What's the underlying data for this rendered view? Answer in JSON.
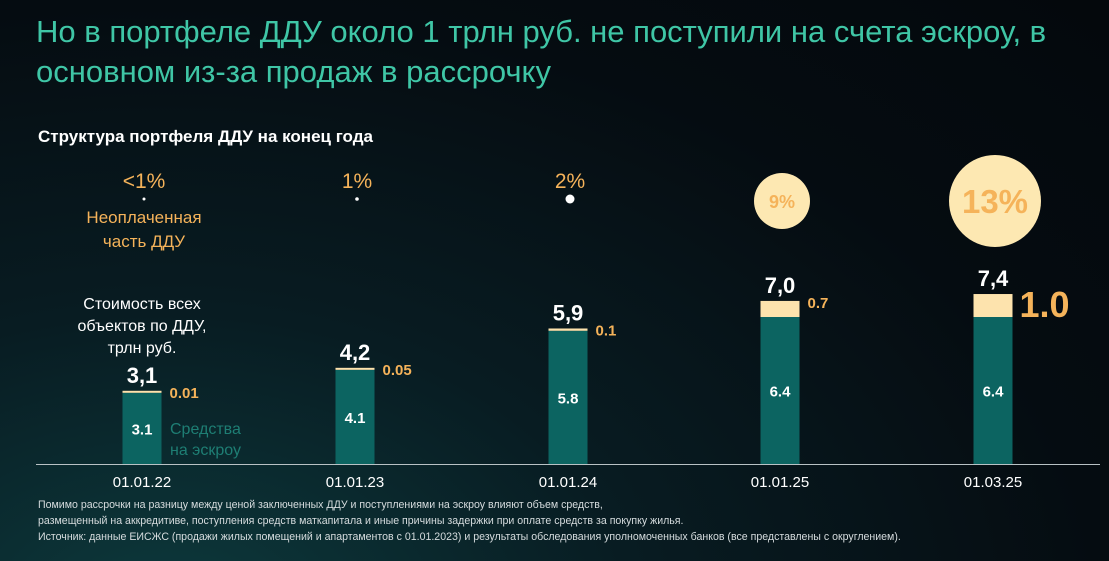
{
  "headline": "Но в портфеле ДДУ около 1 трлн руб. не поступили на счета эскроу, в основном из-за продаж в рассрочку",
  "colors": {
    "headline": "#3fc6a6",
    "escrow_bar": "#0c6461",
    "unpaid_bar": "#fde3ad",
    "unpaid_text": "#f5b35a",
    "escrow_label": "#1e7e74",
    "circle": "#fde8b2"
  },
  "legend": {
    "unpaid_part": "Неоплаченная часть ДДУ",
    "unpaid_part_lines": [
      "Неоплаченная",
      "часть ДДУ"
    ],
    "total_cost_lines": [
      "Стоимость всех",
      "объектов по ДДУ,",
      "трлн руб."
    ],
    "escrow_funds_lines": [
      "Средства",
      "на эскроу"
    ]
  },
  "chart_data": {
    "type": "bar",
    "stacked": true,
    "title": "Структура портфеля ДДУ на конец года",
    "categories": [
      "01.01.22",
      "01.01.23",
      "01.01.24",
      "01.01.25",
      "01.03.25"
    ],
    "series": [
      {
        "name": "Средства на эскроу",
        "values": [
          3.1,
          4.1,
          5.8,
          6.4,
          6.4
        ],
        "labels": [
          "3.1",
          "4.1",
          "5.8",
          "6.4",
          "6.4"
        ]
      },
      {
        "name": "Неоплаченная часть ДДУ",
        "values": [
          0.01,
          0.05,
          0.1,
          0.7,
          1.0
        ],
        "labels": [
          "0.01",
          "0.05",
          "0.1",
          "0.7",
          "1.0"
        ]
      }
    ],
    "totals": [
      "3,1",
      "4,2",
      "5,9",
      "7,0",
      "7,4"
    ],
    "total_values": [
      3.1,
      4.2,
      5.9,
      7.0,
      7.4
    ],
    "unpaid_share_labels": [
      "<1%",
      "1%",
      "2%",
      "9%",
      "13%"
    ],
    "unpaid_share_values": [
      0.5,
      1,
      2,
      9,
      13
    ],
    "unit": "трлн руб.",
    "ylim": [
      0,
      7.4
    ],
    "grid": false
  },
  "footnotes": [
    "Помимо рассрочки на разницу между ценой заключенных ДДУ и поступлениями на эскроу влияют объем средств,",
    "размещенный на аккредитиве, поступления средств маткапитала и иные причины задержки при оплате средств за покупку жилья.",
    "Источник: данные ЕИСЖС (продажи жилых помещений и апартаментов с 01.01.2023) и результаты обследования уполномоченных банков (все представлены с округлением)."
  ]
}
